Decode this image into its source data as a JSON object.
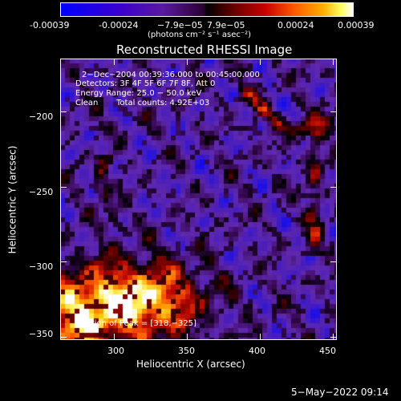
{
  "colorbar": {
    "tick_labels": [
      "-0.00039",
      "-0.00024",
      "−7.9e−05",
      "7.9e−05",
      "0.00024",
      "0.00039"
    ],
    "units_line": "(photons cm⁻² s⁻¹ asec⁻²)"
  },
  "chart_data": {
    "type": "heatmap",
    "title": "Reconstructed RHESSI Image",
    "xlabel": "Heliocentric X (arcsec)",
    "ylabel": "Heliocentric Y (arcsec)",
    "xlim": [
      263,
      453
    ],
    "ylim": [
      -352,
      -165
    ],
    "x_ticks": [
      300,
      350,
      400,
      450
    ],
    "y_ticks": [
      -200,
      -250,
      -300,
      -350
    ],
    "x_tick_labels": [
      "300",
      "350",
      "400",
      "450"
    ],
    "y_tick_labels": [
      "−200",
      "−250",
      "−300",
      "−350"
    ],
    "color_range": [
      -0.00039,
      0.00039
    ],
    "annotations": [
      "2−Dec−2004 00:39:36.000 to 00:45:00.000",
      "Detectors: 3F 4F 5F 6F 7F 8F, Att 0",
      "Energy Range: 25.0 − 50.0 keV",
      "Clean",
      "Total counts: 4.92E+03"
    ],
    "peak_label": "Position of Peak = [318,−325]",
    "peak": [
      318,
      -325
    ]
  },
  "footer": {
    "timestamp": "5−May−2022 09:14"
  }
}
